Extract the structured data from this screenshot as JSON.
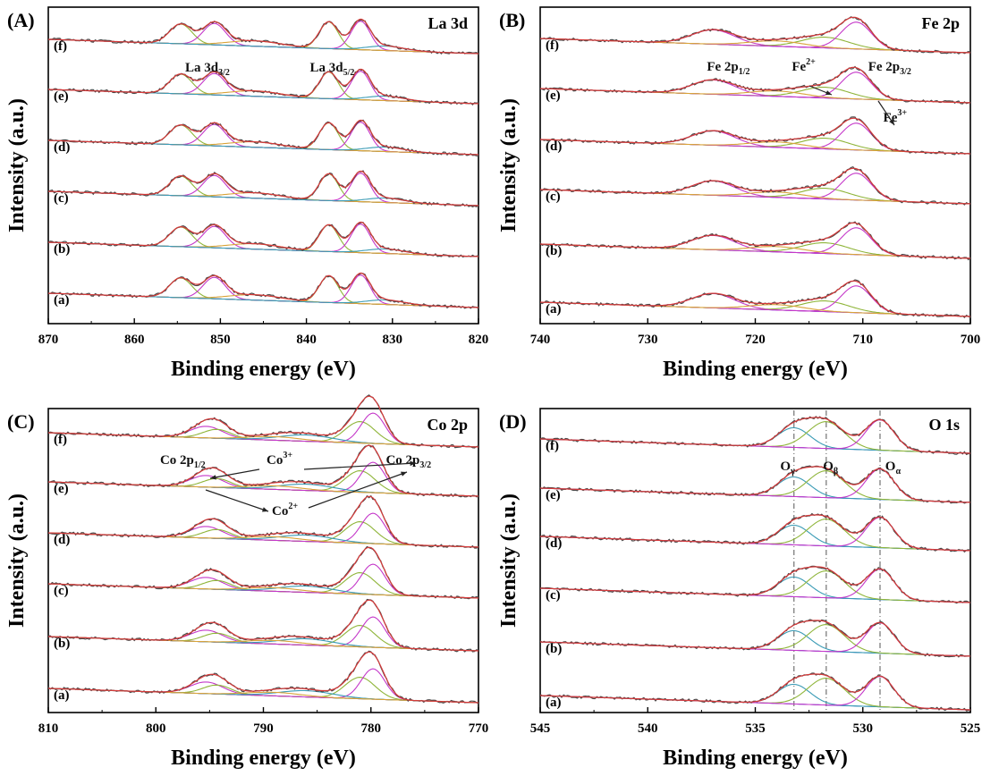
{
  "figure": {
    "y_axis_label": "Intensity (a.u.)",
    "x_axis_label": "Binding energy (eV)"
  },
  "colors": {
    "raw": "#4a4a4a",
    "envelope": "#d63a3a",
    "background": "#3b6fd1",
    "fit_magenta": "#c437c9",
    "fit_green": "#8fb53a",
    "fit_teal": "#3a9bb5",
    "fit_orange": "#d9a33a",
    "guide": "#555555"
  },
  "chart_data": [
    {
      "type": "line",
      "panel_label": "(A)",
      "element_label": "La 3d",
      "xlim": [
        870,
        820
      ],
      "x_ticks": [
        "870",
        "860",
        "850",
        "840",
        "830",
        "820"
      ],
      "sample_labels": [
        "(a)",
        "(b)",
        "(c)",
        "(d)",
        "(e)",
        "(f)"
      ],
      "peaks_eV": [
        854.6,
        850.7,
        837.4,
        833.7
      ],
      "annotations": [
        {
          "text": "La 3d",
          "sub": "3/2",
          "x": 851.5,
          "sample": "(e)"
        },
        {
          "text": "La 3d",
          "sub": "5/2",
          "x": 837.0,
          "sample": "(e)"
        }
      ]
    },
    {
      "type": "line",
      "panel_label": "(B)",
      "element_label": "Fe 2p",
      "xlim": [
        740,
        700
      ],
      "x_ticks": [
        "740",
        "730",
        "720",
        "710",
        "700"
      ],
      "sample_labels": [
        "(a)",
        "(b)",
        "(c)",
        "(d)",
        "(e)",
        "(f)"
      ],
      "peaks_eV": [
        723.9,
        710.6
      ],
      "annotations": [
        {
          "text": "Fe 2p",
          "sub": "1/2",
          "x": 722.5,
          "sample": "(e)"
        },
        {
          "text": "Fe",
          "sup": "2+",
          "x": 715.5,
          "sample": "(e)"
        },
        {
          "text": "Fe 2p",
          "sub": "3/2",
          "x": 707.5,
          "sample": "(e)"
        },
        {
          "text": "Fe",
          "sup": "3+",
          "x": 707.0,
          "sample": "(d)"
        }
      ]
    },
    {
      "type": "line",
      "panel_label": "(C)",
      "element_label": "Co 2p",
      "xlim": [
        810,
        770
      ],
      "x_ticks": [
        "810",
        "800",
        "790",
        "780",
        "770"
      ],
      "sample_labels": [
        "(a)",
        "(b)",
        "(c)",
        "(d)",
        "(e)",
        "(f)"
      ],
      "peaks_eV": [
        795.3,
        779.8
      ],
      "annotations": [
        {
          "text": "Co 2p",
          "sub": "1/2",
          "x": 797.5,
          "sample": "(e)"
        },
        {
          "text": "Co",
          "sup": "3+",
          "x": 788.5,
          "sample": "(e)"
        },
        {
          "text": "Co 2p",
          "sub": "3/2",
          "x": 776.5,
          "sample": "(e)"
        },
        {
          "text": "Co",
          "sup": "2+",
          "x": 788.0,
          "sample": "(d)"
        }
      ]
    },
    {
      "type": "line",
      "panel_label": "(D)",
      "element_label": "O 1s",
      "xlim": [
        545,
        525
      ],
      "x_ticks": [
        "545",
        "540",
        "535",
        "530",
        "525"
      ],
      "sample_labels": [
        "(a)",
        "(b)",
        "(c)",
        "(d)",
        "(e)",
        "(f)"
      ],
      "peaks_eV": [
        533.2,
        531.7,
        529.2
      ],
      "reference_lines_eV": [
        533.2,
        531.7,
        529.2
      ],
      "annotations": [
        {
          "text": "O",
          "sub": "γ",
          "x": 533.5,
          "sample": "(e)"
        },
        {
          "text": "O",
          "sub": "β",
          "x": 531.5,
          "sample": "(e)"
        },
        {
          "text": "O",
          "sub": "α",
          "x": 528.6,
          "sample": "(e)"
        }
      ]
    }
  ]
}
